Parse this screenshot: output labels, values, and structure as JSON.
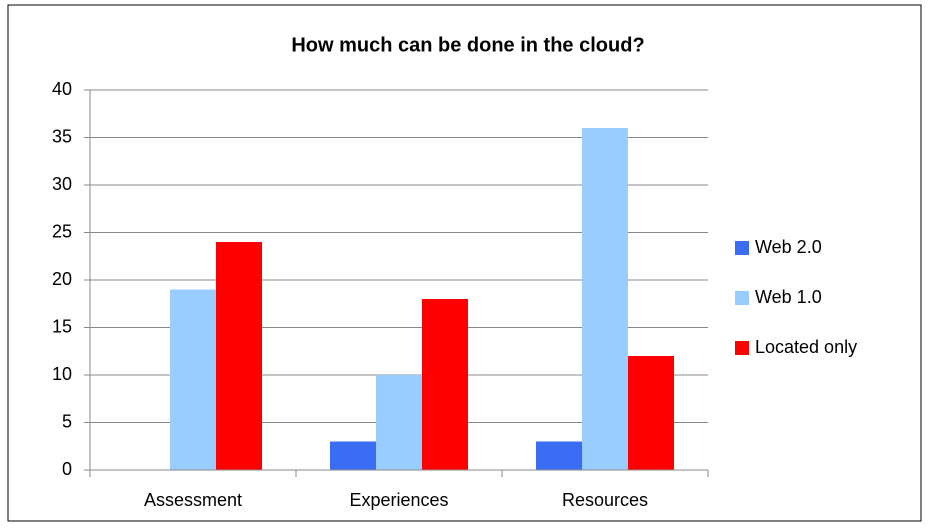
{
  "chart_data": {
    "type": "bar",
    "title": "How much can be done in the cloud?",
    "categories": [
      "Assessment",
      "Experiences",
      "Resources"
    ],
    "series": [
      {
        "name": "Web 2.0",
        "color": "#3a6cf4",
        "values": [
          0,
          3,
          3
        ]
      },
      {
        "name": "Web 1.0",
        "color": "#99ccff",
        "values": [
          19,
          10,
          36
        ]
      },
      {
        "name": "Located only",
        "color": "#ff0000",
        "values": [
          24,
          18,
          12
        ]
      }
    ],
    "ylim": [
      0,
      40
    ],
    "yticks": [
      0,
      5,
      10,
      15,
      20,
      25,
      30,
      35,
      40
    ],
    "grid": true,
    "legend": "right"
  }
}
